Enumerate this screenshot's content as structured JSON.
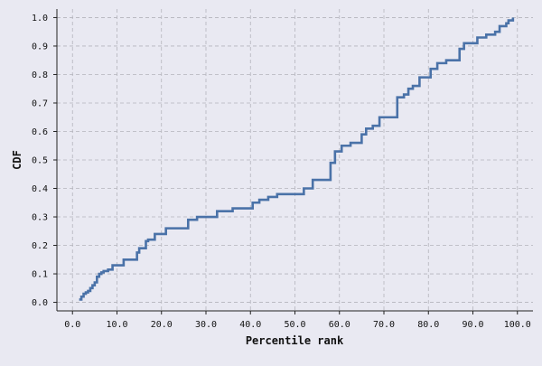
{
  "chart_data": {
    "type": "line",
    "drawstyle": "steps-post",
    "title": "",
    "xlabel": "Percentile rank",
    "ylabel": "CDF",
    "xlim": [
      -3.5,
      103.5
    ],
    "ylim": [
      -0.03,
      1.03
    ],
    "grid": true,
    "x_ticks": [
      0,
      10,
      20,
      30,
      40,
      50,
      60,
      70,
      80,
      90,
      100
    ],
    "x_tick_labels": [
      "0.0",
      "10.0",
      "20.0",
      "30.0",
      "40.0",
      "50.0",
      "60.0",
      "70.0",
      "80.0",
      "90.0",
      "100.0"
    ],
    "y_ticks": [
      0,
      0.1,
      0.2,
      0.3,
      0.4,
      0.5,
      0.6,
      0.7,
      0.8,
      0.9,
      1.0
    ],
    "y_tick_labels": [
      "0.0",
      "0.1",
      "0.2",
      "0.3",
      "0.4",
      "0.5",
      "0.6",
      "0.7",
      "0.8",
      "0.9",
      "1.0"
    ],
    "colors": {
      "background": "#e9e9f2",
      "line": "#4a72a8",
      "grid": "#b4b4bc",
      "axis": "#222222"
    },
    "series": [
      {
        "x": [
          1.5,
          2.0,
          2.5,
          3.0,
          3.5,
          4.0,
          4.5,
          5.0,
          5.5,
          6.0,
          6.5,
          7.0,
          8.0,
          9.0,
          11.5,
          14.5,
          15.0,
          16.5,
          17.0,
          18.5,
          20.0,
          21.0,
          23.0,
          26.0,
          27.0,
          28.0,
          32.5,
          36.0,
          40.5,
          42.0,
          44.0,
          46.0,
          48.0,
          52.0,
          54.0,
          55.0,
          56.5,
          58.0,
          59.0,
          60.5,
          62.5,
          65.0,
          66.0,
          67.5,
          69.0,
          70.5,
          73.0,
          74.5,
          75.5,
          76.5,
          78.0,
          80.5,
          82.0,
          84.0,
          87.0,
          88.0,
          89.0,
          91.0,
          92.0,
          93.0,
          95.0,
          96.0,
          97.5,
          98.0,
          99.0
        ],
        "y": [
          0.01,
          0.02,
          0.03,
          0.035,
          0.04,
          0.05,
          0.06,
          0.07,
          0.09,
          0.1,
          0.105,
          0.11,
          0.115,
          0.13,
          0.15,
          0.175,
          0.19,
          0.215,
          0.22,
          0.24,
          0.24,
          0.26,
          0.26,
          0.29,
          0.29,
          0.3,
          0.32,
          0.33,
          0.35,
          0.36,
          0.37,
          0.38,
          0.38,
          0.4,
          0.43,
          0.43,
          0.43,
          0.49,
          0.53,
          0.55,
          0.56,
          0.59,
          0.61,
          0.62,
          0.65,
          0.65,
          0.72,
          0.73,
          0.75,
          0.76,
          0.79,
          0.82,
          0.84,
          0.85,
          0.89,
          0.91,
          0.91,
          0.93,
          0.93,
          0.94,
          0.95,
          0.97,
          0.98,
          0.99,
          1.0
        ]
      }
    ]
  }
}
